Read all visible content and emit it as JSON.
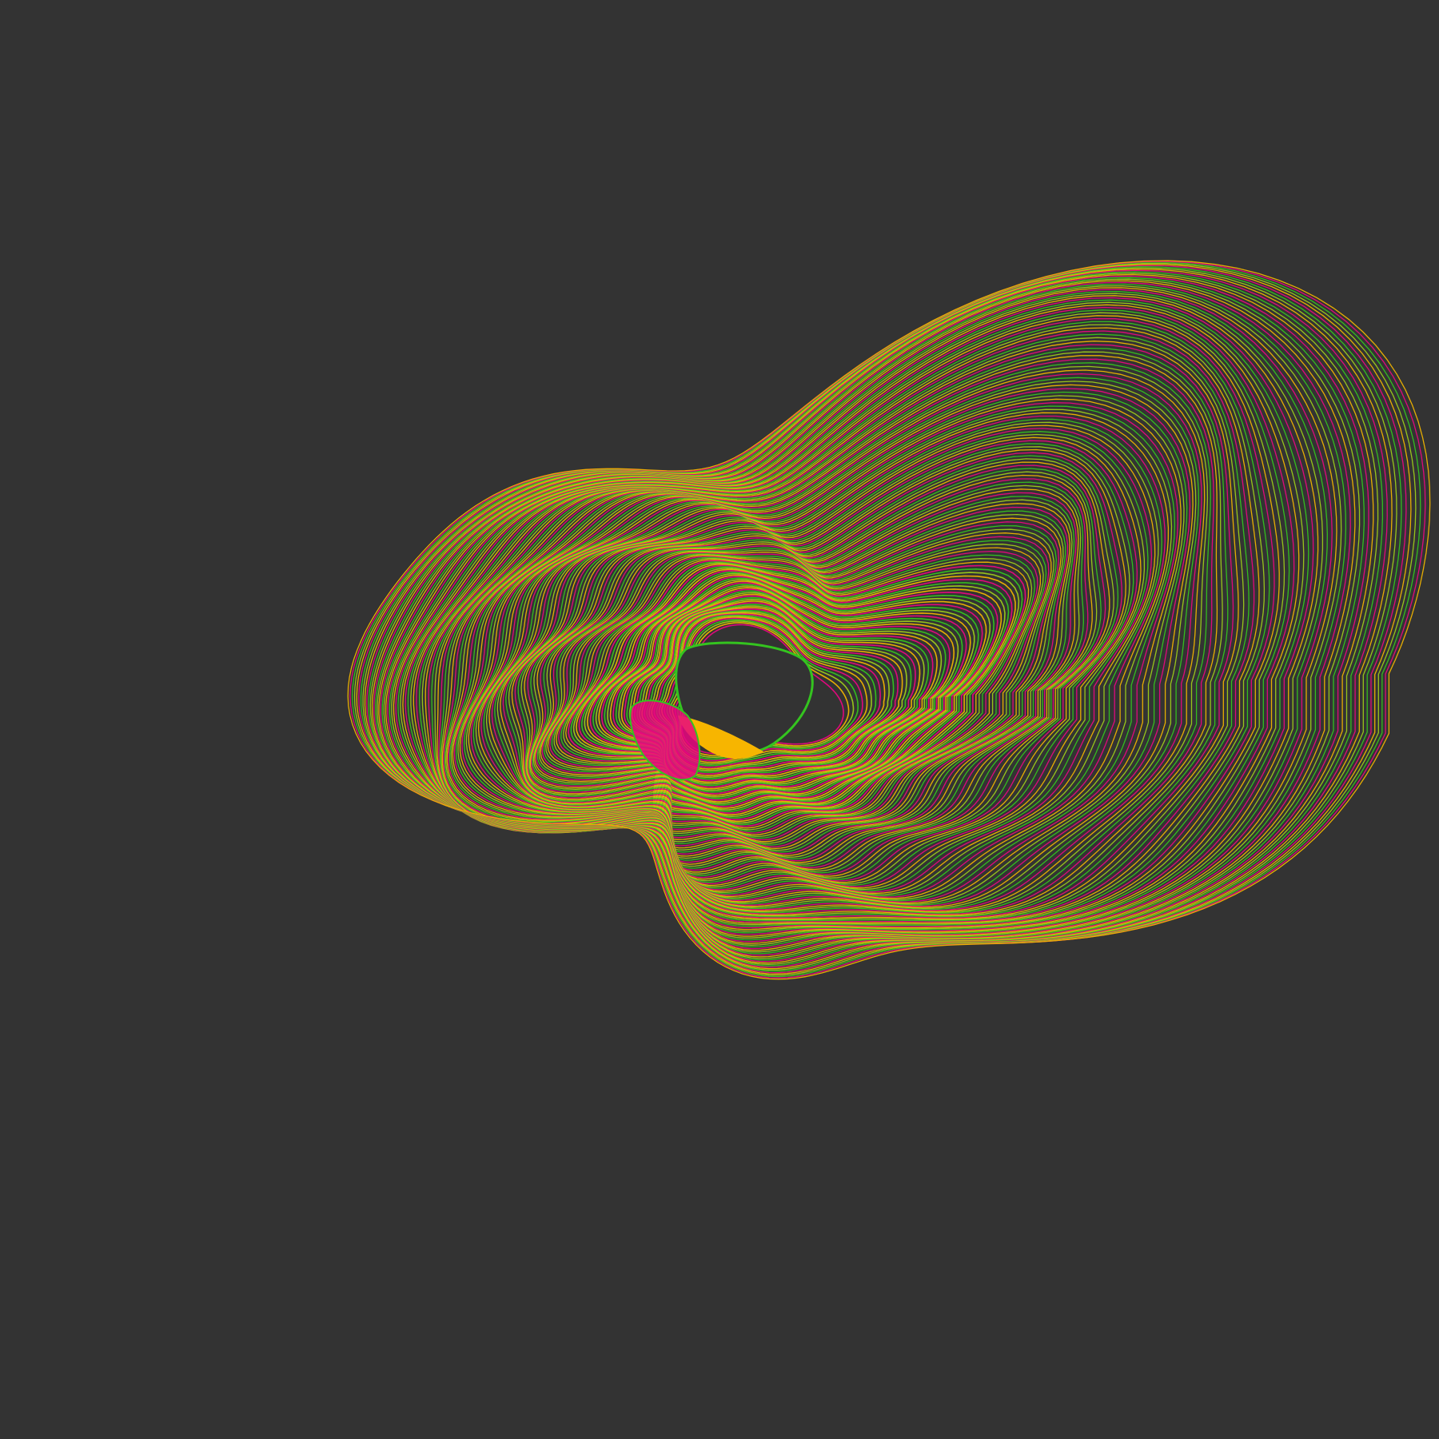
{
  "artwork": {
    "background_color": "#333333",
    "palette": [
      "#e8077f",
      "#f0b400",
      "#9ccc1a",
      "#34c41f"
    ],
    "hole_color": "#333333",
    "inner_accent_color": "#f7b500",
    "description_free": true
  }
}
